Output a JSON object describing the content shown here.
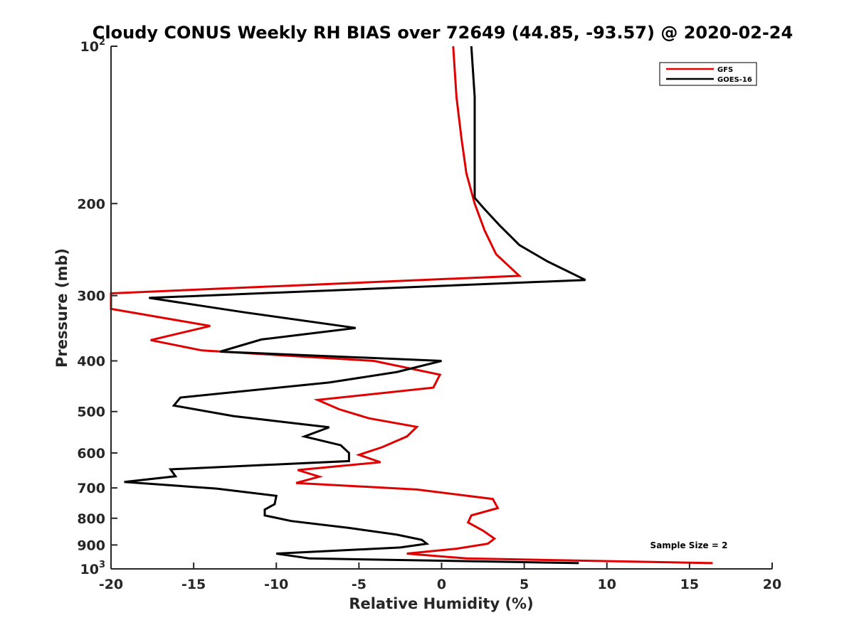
{
  "chart_data": {
    "type": "line",
    "title": "Cloudy CONUS Weekly RH BIAS over 72649 (44.85, -93.57) @ 2020-02-24",
    "xlabel": "Relative Humidity (%)",
    "ylabel": "Pressure (mb)",
    "xlim": [
      -20,
      20
    ],
    "ylim": [
      100,
      1000
    ],
    "y_scale": "log",
    "y_reversed": true,
    "grid": false,
    "legend_position": "top-right",
    "annotation": "Sample Size = 2",
    "x_ticks": [
      {
        "value": -20,
        "label": "-20"
      },
      {
        "value": -15,
        "label": "-15"
      },
      {
        "value": -10,
        "label": "-10"
      },
      {
        "value": -5,
        "label": "-5"
      },
      {
        "value": 0,
        "label": "0"
      },
      {
        "value": 5,
        "label": "5"
      },
      {
        "value": 10,
        "label": "10"
      },
      {
        "value": 15,
        "label": "15"
      },
      {
        "value": 20,
        "label": "20"
      }
    ],
    "y_ticks": [
      {
        "value": 100,
        "base": "10",
        "exp": "2"
      },
      {
        "value": 200,
        "base": "200",
        "exp": ""
      },
      {
        "value": 300,
        "base": "300",
        "exp": ""
      },
      {
        "value": 400,
        "base": "400",
        "exp": ""
      },
      {
        "value": 500,
        "base": "500",
        "exp": ""
      },
      {
        "value": 600,
        "base": "600",
        "exp": ""
      },
      {
        "value": 700,
        "base": "700",
        "exp": ""
      },
      {
        "value": 800,
        "base": "800",
        "exp": ""
      },
      {
        "value": 900,
        "base": "900",
        "exp": ""
      },
      {
        "value": 1000,
        "base": "10",
        "exp": "3"
      }
    ],
    "series": [
      {
        "name": "GFS",
        "color": "#e00000",
        "points": [
          [
            0.7,
            100
          ],
          [
            0.9,
            125
          ],
          [
            1.2,
            150
          ],
          [
            1.5,
            175
          ],
          [
            2.0,
            200
          ],
          [
            2.6,
            225
          ],
          [
            3.3,
            250
          ],
          [
            4.7,
            275
          ],
          [
            -20.0,
            297
          ],
          [
            -20.0,
            318
          ],
          [
            -14.0,
            343
          ],
          [
            -17.6,
            365
          ],
          [
            -14.5,
            382
          ],
          [
            -4.1,
            400
          ],
          [
            -0.1,
            425
          ],
          [
            -0.5,
            450
          ],
          [
            -7.5,
            475
          ],
          [
            -6.2,
            495
          ],
          [
            -4.4,
            515
          ],
          [
            -1.5,
            535
          ],
          [
            -2.1,
            558
          ],
          [
            -3.6,
            585
          ],
          [
            -5.0,
            605
          ],
          [
            -3.7,
            625
          ],
          [
            -8.7,
            647
          ],
          [
            -7.4,
            666
          ],
          [
            -8.8,
            685
          ],
          [
            -1.5,
            705
          ],
          [
            3.1,
            735
          ],
          [
            3.4,
            765
          ],
          [
            1.8,
            790
          ],
          [
            1.6,
            815
          ],
          [
            2.5,
            845
          ],
          [
            3.2,
            875
          ],
          [
            2.8,
            895
          ],
          [
            0.9,
            915
          ],
          [
            -2.1,
            935
          ],
          [
            1.5,
            955
          ],
          [
            16.4,
            975
          ]
        ]
      },
      {
        "name": "GOES-16",
        "color": "#000000",
        "points": [
          [
            1.8,
            100
          ],
          [
            2.0,
            125
          ],
          [
            2.0,
            150
          ],
          [
            2.0,
            175
          ],
          [
            2.0,
            195
          ],
          [
            2.6,
            205
          ],
          [
            3.5,
            220
          ],
          [
            4.7,
            240
          ],
          [
            6.4,
            258
          ],
          [
            8.7,
            280
          ],
          [
            -17.7,
            303
          ],
          [
            -11.9,
            323
          ],
          [
            -5.2,
            346
          ],
          [
            -10.9,
            364
          ],
          [
            -13.4,
            384
          ],
          [
            0.0,
            400
          ],
          [
            -2.7,
            420
          ],
          [
            -6.8,
            440
          ],
          [
            -15.8,
            470
          ],
          [
            -16.2,
            487
          ],
          [
            -12.6,
            510
          ],
          [
            -6.8,
            536
          ],
          [
            -8.3,
            558
          ],
          [
            -6.1,
            580
          ],
          [
            -5.6,
            600
          ],
          [
            -5.6,
            622
          ],
          [
            -16.4,
            645
          ],
          [
            -16.1,
            665
          ],
          [
            -19.2,
            682
          ],
          [
            -13.6,
            702
          ],
          [
            -10.0,
            725
          ],
          [
            -10.1,
            752
          ],
          [
            -10.7,
            770
          ],
          [
            -10.7,
            790
          ],
          [
            -9.1,
            810
          ],
          [
            -5.6,
            835
          ],
          [
            -2.7,
            860
          ],
          [
            -1.2,
            880
          ],
          [
            -0.9,
            895
          ],
          [
            -2.5,
            910
          ],
          [
            -10.0,
            935
          ],
          [
            -8.0,
            955
          ],
          [
            8.3,
            975
          ]
        ]
      }
    ]
  }
}
